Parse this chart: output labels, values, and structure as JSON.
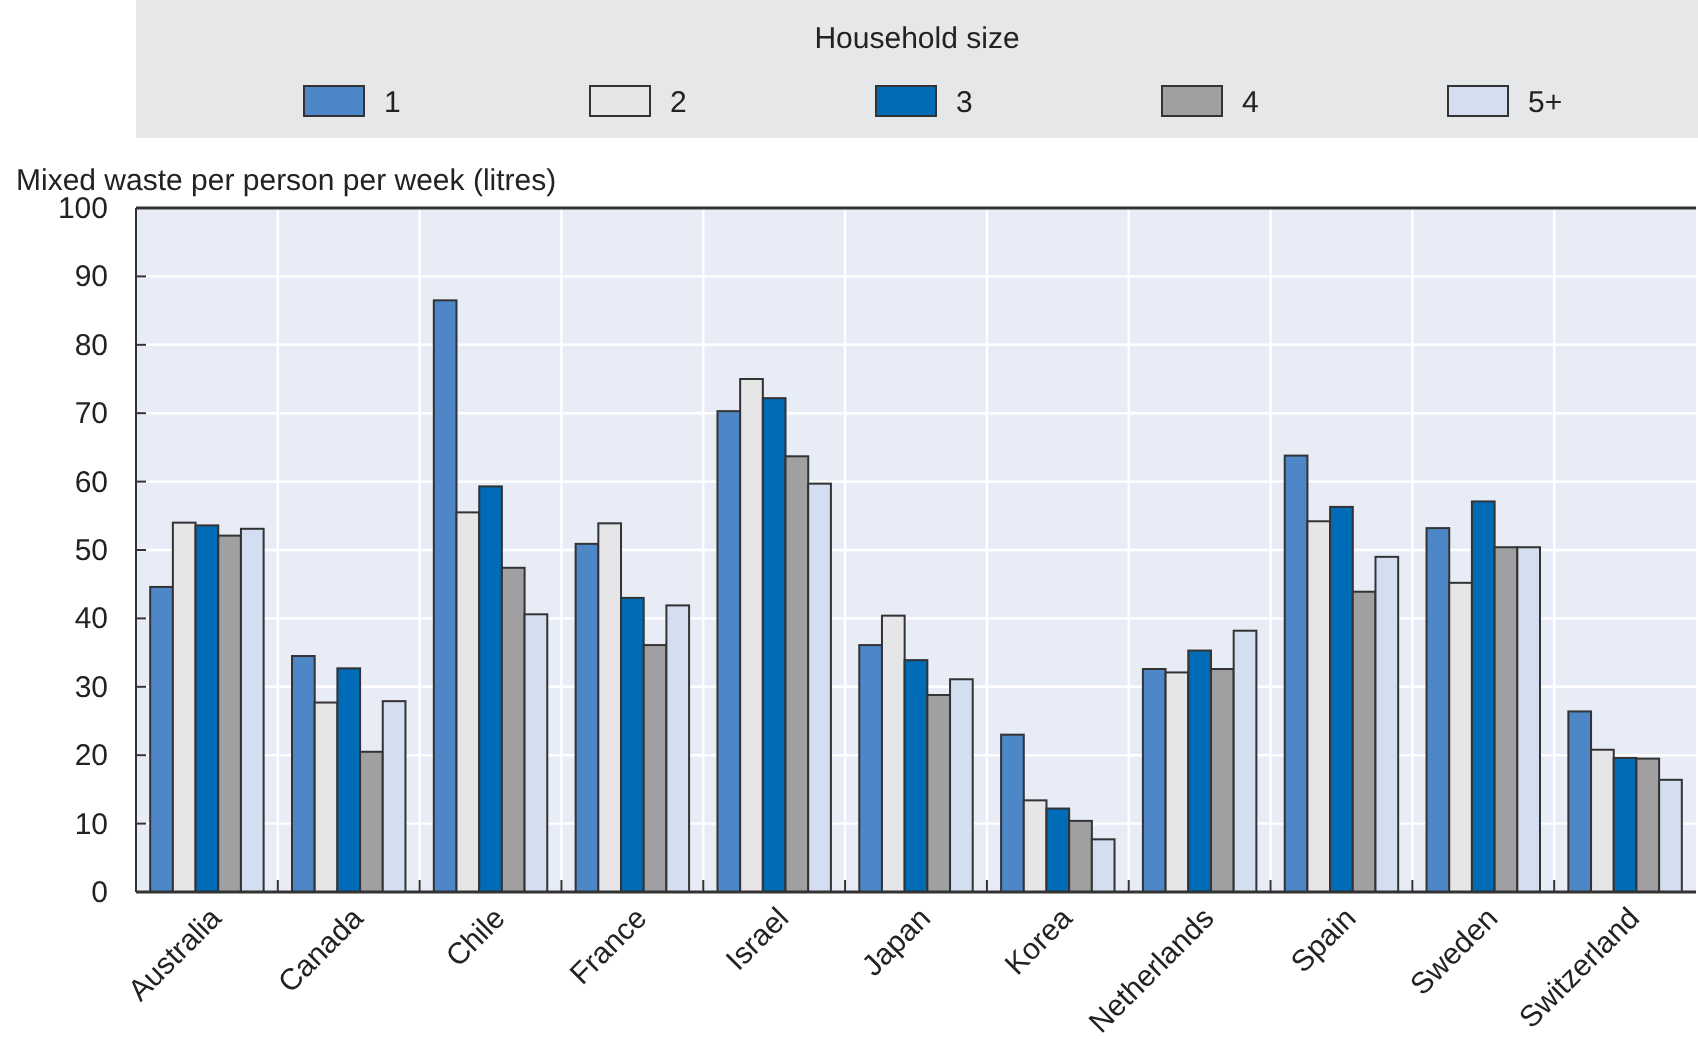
{
  "chart_data": {
    "type": "bar",
    "ylabel": "Mixed waste per person per week (litres)",
    "legend_title": "Household size",
    "legend": "top",
    "grid": true,
    "categories": [
      "Australia",
      "Canada",
      "Chile",
      "France",
      "Israel",
      "Japan",
      "Korea",
      "Netherlands",
      "Spain",
      "Sweden",
      "Switzerland"
    ],
    "ylim": [
      0,
      100
    ],
    "yticks": [
      0,
      10,
      20,
      30,
      40,
      50,
      60,
      70,
      80,
      90,
      100
    ],
    "series": [
      {
        "name": "1",
        "color": "#4e87c8",
        "values": [
          44.6,
          34.5,
          86.5,
          50.9,
          70.3,
          36.1,
          23,
          32.6,
          63.8,
          53.2,
          26.4
        ]
      },
      {
        "name": "2",
        "color": "#e6e6e9",
        "values": [
          54,
          27.7,
          55.5,
          53.9,
          75,
          40.4,
          13.4,
          32.1,
          54.2,
          45.2,
          20.8
        ]
      },
      {
        "name": "3",
        "color": "#006bb6",
        "values": [
          53.6,
          32.7,
          59.3,
          43,
          72.2,
          33.9,
          12.2,
          35.3,
          56.3,
          57.1,
          19.6
        ]
      },
      {
        "name": "4",
        "color": "#a0a0a3",
        "values": [
          52.1,
          20.5,
          47.4,
          36.1,
          63.7,
          28.8,
          10.4,
          32.6,
          43.9,
          50.4,
          19.5
        ]
      },
      {
        "name": "5+",
        "color": "#d3dff0",
        "values": [
          53.1,
          27.9,
          40.6,
          41.9,
          59.7,
          31.1,
          7.7,
          38.2,
          49,
          50.4,
          16.4
        ]
      }
    ]
  }
}
